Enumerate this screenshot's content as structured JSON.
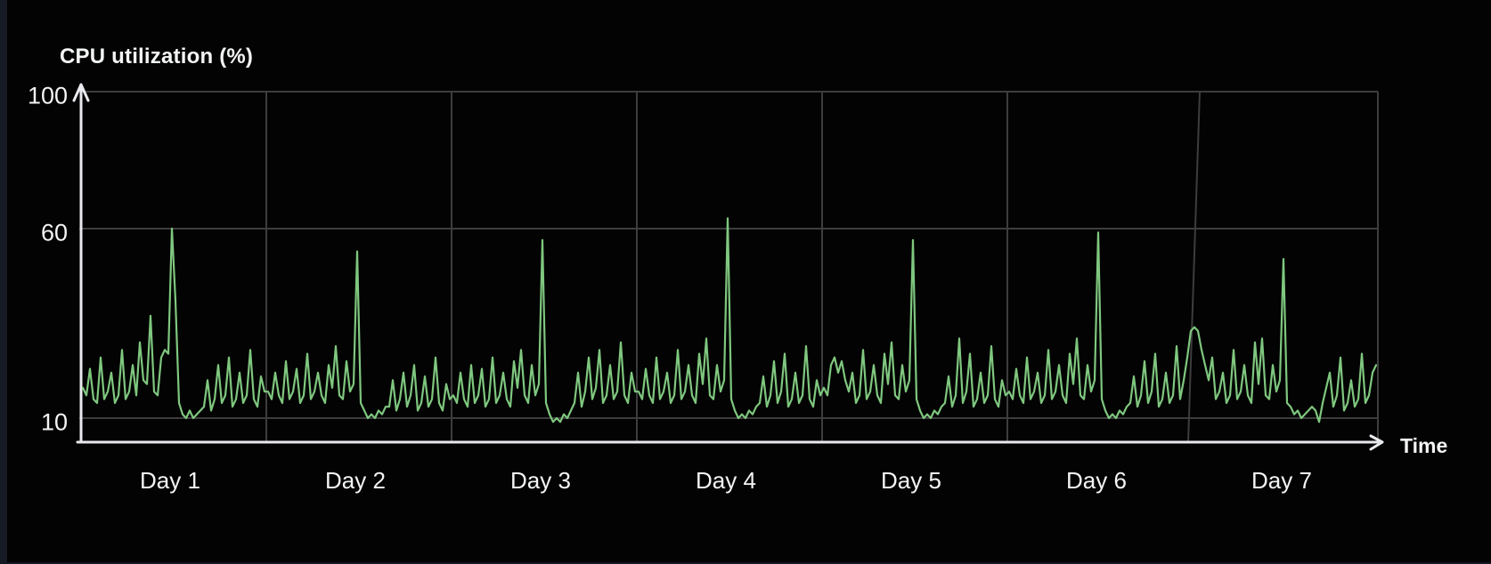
{
  "window": {
    "background_color": "#030303",
    "edge_strip_color": "#161a24",
    "bottom_strip_color": "#131720"
  },
  "chart_data": {
    "type": "line",
    "title": "CPU utilization (%)",
    "xlabel": "Time",
    "ylabel": "",
    "categories": [
      "Day 1",
      "Day 2",
      "Day 3",
      "Day 4",
      "Day 5",
      "Day 6",
      "Day 7"
    ],
    "yticks": [
      100,
      60,
      10
    ],
    "ylim": [
      10,
      100
    ],
    "grid": true,
    "legend": false,
    "colors": {
      "line": "#7fc77f",
      "axis": "#e9eaee",
      "text": "#f3f4f5",
      "gridline": "#3d3d3d"
    },
    "series": [
      {
        "name": "CPU utilization",
        "points_per_day": 52,
        "daily_peak_values": [
          60,
          54,
          57,
          63,
          57,
          59,
          52
        ],
        "values_by_day": [
          [
            18,
            16,
            23,
            15,
            14,
            26,
            15,
            17,
            22,
            14,
            16,
            28,
            15,
            17,
            24,
            16,
            30,
            20,
            19,
            37,
            17,
            16,
            26,
            28,
            27,
            60,
            41,
            14,
            11,
            10,
            12,
            10,
            11,
            12,
            13,
            20,
            12,
            15,
            24,
            14,
            16,
            26,
            13,
            15,
            22,
            14,
            16,
            28,
            15,
            13,
            21,
            17
          ],
          [
            17,
            15,
            22,
            16,
            14,
            25,
            15,
            17,
            23,
            14,
            16,
            27,
            15,
            17,
            22,
            16,
            14,
            24,
            18,
            29,
            16,
            15,
            25,
            17,
            19,
            54,
            14,
            12,
            10,
            11,
            10,
            12,
            11,
            13,
            13,
            20,
            12,
            15,
            22,
            13,
            16,
            24,
            12,
            14,
            21,
            13,
            15,
            26,
            14,
            12,
            19,
            15
          ],
          [
            16,
            14,
            22,
            15,
            13,
            24,
            14,
            16,
            23,
            13,
            15,
            26,
            14,
            16,
            22,
            15,
            13,
            25,
            18,
            28,
            16,
            14,
            24,
            16,
            19,
            57,
            14,
            11,
            9,
            10,
            9,
            11,
            10,
            12,
            14,
            22,
            13,
            17,
            26,
            15,
            18,
            28,
            14,
            16,
            24,
            15,
            17,
            30,
            16,
            14,
            22,
            17
          ],
          [
            17,
            15,
            23,
            16,
            14,
            26,
            15,
            17,
            22,
            14,
            16,
            28,
            15,
            17,
            24,
            16,
            14,
            27,
            19,
            31,
            16,
            15,
            24,
            17,
            20,
            63,
            15,
            12,
            10,
            11,
            10,
            12,
            11,
            13,
            14,
            21,
            13,
            16,
            25,
            14,
            17,
            27,
            13,
            15,
            22,
            14,
            16,
            29,
            15,
            13,
            20,
            16
          ],
          [
            18,
            16,
            24,
            26,
            22,
            25,
            20,
            17,
            22,
            14,
            16,
            28,
            15,
            17,
            24,
            16,
            14,
            27,
            19,
            30,
            16,
            15,
            24,
            17,
            20,
            57,
            15,
            12,
            10,
            11,
            10,
            12,
            11,
            13,
            14,
            21,
            13,
            16,
            31,
            14,
            17,
            27,
            13,
            15,
            22,
            14,
            16,
            29,
            15,
            13,
            20,
            16
          ],
          [
            17,
            15,
            23,
            16,
            14,
            26,
            15,
            17,
            22,
            14,
            16,
            28,
            15,
            17,
            24,
            16,
            14,
            27,
            19,
            31,
            16,
            15,
            24,
            17,
            20,
            59,
            15,
            12,
            10,
            11,
            10,
            12,
            11,
            13,
            14,
            21,
            13,
            16,
            25,
            14,
            17,
            27,
            13,
            15,
            22,
            14,
            16,
            29,
            15,
            20,
            26,
            33
          ],
          [
            34,
            33,
            28,
            24,
            20,
            26,
            15,
            17,
            22,
            14,
            16,
            28,
            15,
            17,
            24,
            16,
            14,
            30,
            19,
            31,
            16,
            15,
            24,
            17,
            20,
            52,
            14,
            13,
            11,
            12,
            10,
            11,
            12,
            13,
            12,
            9,
            14,
            18,
            22,
            13,
            16,
            26,
            12,
            14,
            20,
            13,
            15,
            27,
            14,
            16,
            22,
            24
          ]
        ]
      }
    ]
  }
}
